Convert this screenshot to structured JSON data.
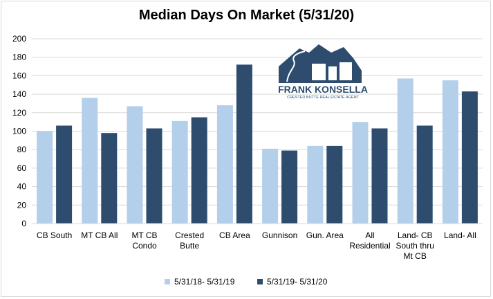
{
  "chart_data": {
    "type": "bar",
    "title": "Median Days On Market (5/31/20)",
    "xlabel": "",
    "ylabel": "",
    "ylim": [
      0,
      200
    ],
    "yticks": [
      0,
      20,
      40,
      60,
      80,
      100,
      120,
      140,
      160,
      180,
      200
    ],
    "grid": true,
    "legend_position": "bottom",
    "categories": [
      [
        "CB South"
      ],
      [
        "MT CB All"
      ],
      [
        "MT CB",
        "Condo"
      ],
      [
        "Crested",
        "Butte"
      ],
      [
        "CB Area"
      ],
      [
        "Gunnison"
      ],
      [
        "Gun. Area"
      ],
      [
        "All",
        "Residential"
      ],
      [
        "Land- CB",
        "South thru",
        "Mt CB"
      ],
      [
        "Land- All"
      ]
    ],
    "series": [
      {
        "name": "5/31/18- 5/31/19",
        "color": "#b4cfea",
        "values": [
          100,
          136,
          127,
          111,
          128,
          81,
          84,
          110,
          157,
          155
        ]
      },
      {
        "name": "5/31/19- 5/31/20",
        "color": "#2e4d6e",
        "values": [
          106,
          98,
          103,
          115,
          172,
          79,
          84,
          103,
          106,
          143
        ]
      }
    ]
  },
  "logo": {
    "name": "FRANK KONSELLA",
    "tagline": "CRESTED BUTTE REAL ESTATE AGENT",
    "color": "#2e4d6e"
  }
}
